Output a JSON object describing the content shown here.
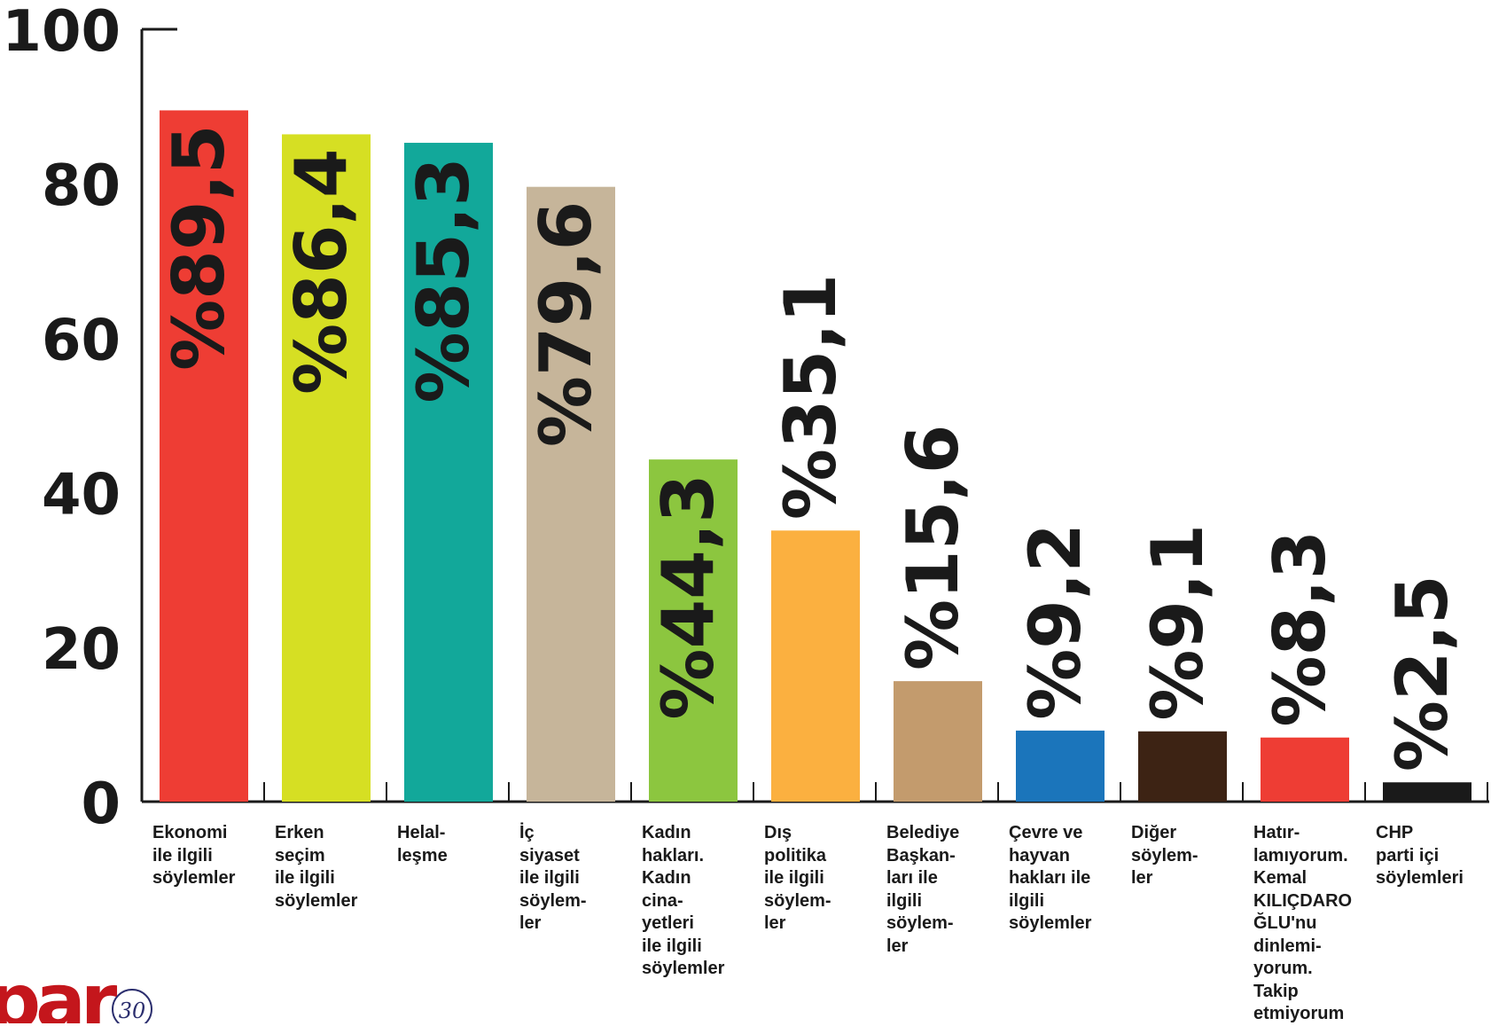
{
  "chart_data": {
    "type": "bar",
    "ylim": [
      0,
      100
    ],
    "yticks": [
      "0",
      "20",
      "40",
      "60",
      "80",
      "100"
    ],
    "categories": [
      "Ekonomi\nile ilgili\nsöylemler",
      "Erken\nseçim\nile ilgili\nsöylemler",
      "Helal-\nleşme",
      "İç\nsiyaset\nile ilgili\nsöylem-\nler",
      "Kadın\nhakları.\nKadın\ncina-\nyetleri\nile ilgili\nsöylemler",
      "Dış\npolitika\nile ilgili\nsöylem-\nler",
      "Belediye\nBaşkan-\nları ile\nilgili\nsöylem-\nler",
      "Çevre ve\nhayvan\nhakları ile\nilgili\nsöylemler",
      "Diğer\nsöylem-\nler",
      "Hatır-\nlamıyorum.\nKemal\nKILIÇDARO\nĞLU'nu\ndinlemi-\nyorum.\nTakip\netmiyorum",
      "CHP\nparti içi\nsöylemleri"
    ],
    "values": [
      89.5,
      86.4,
      85.3,
      79.6,
      44.3,
      35.1,
      15.6,
      9.2,
      9.1,
      8.3,
      2.5
    ],
    "value_labels": [
      "%89,5",
      "%86,4",
      "%85,3",
      "%79,6",
      "%44,3",
      "%35,1",
      "%15,6",
      "%9,2",
      "%9,1",
      "%8,3",
      "%2,5"
    ],
    "colors": [
      "#ee3d34",
      "#d6df23",
      "#12a89a",
      "#c6b59a",
      "#8cc63f",
      "#fbb040",
      "#c39b6d",
      "#1b75bb",
      "#3d2314",
      "#ee3d34",
      "#1a1a1a"
    ],
    "grid": false,
    "legend": "none"
  },
  "logo": {
    "text": "par",
    "badge": "30",
    "color": "#c4161c"
  }
}
